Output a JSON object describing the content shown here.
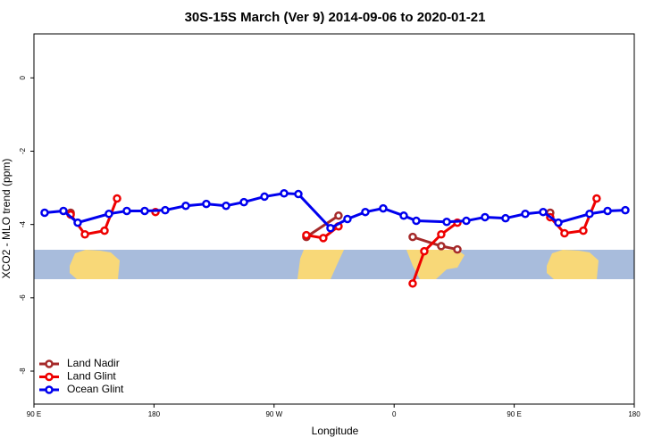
{
  "chart_data": {
    "type": "line",
    "title": "30S-15S March (Ver 9)   2014-09-06 to 2020-01-21",
    "xlabel": "Longitude",
    "ylabel": "XCO2 - MLO trend (ppm)",
    "xlim": [
      90,
      540
    ],
    "xticks": [
      {
        "value": 90,
        "label": "90 E"
      },
      180,
      {
        "value": 270,
        "label": "90 W"
      },
      {
        "value": 360,
        "label": "0"
      },
      {
        "value": 450,
        "label": "90 E"
      },
      {
        "value": 540,
        "label": "180"
      }
    ],
    "ylim": [
      -8.9,
      1.2
    ],
    "yticks": [
      0,
      -2,
      -4,
      -6,
      -8
    ],
    "legend": "bottom-left",
    "series": [
      {
        "name": "Land Nadir",
        "color": "#a52a2a",
        "x": [
          117.5,
          null,
          294.2,
          318.3,
          null,
          373.9,
          395.3,
          407.4,
          null,
          477.0
        ],
        "values": [
          -3.68,
          null,
          -4.34,
          -3.76,
          null,
          -4.34,
          -4.59,
          -4.68,
          null,
          -3.68
        ]
      },
      {
        "name": "Land Glint",
        "color": "#ee0000",
        "x": [
          117.5,
          128.2,
          142.9,
          152.3,
          null,
          181.1,
          null,
          294.2,
          306.9,
          318.3,
          null,
          373.9,
          382.6,
          395.3,
          407.4,
          null,
          477.0,
          487.7,
          501.8,
          511.8
        ],
        "values": [
          -3.73,
          -4.27,
          -4.17,
          -3.29,
          null,
          -3.66,
          null,
          -4.29,
          -4.37,
          -4.05,
          null,
          -5.61,
          -4.73,
          -4.27,
          -3.95,
          null,
          -3.8,
          -4.24,
          -4.17,
          -3.29
        ]
      },
      {
        "name": "Ocean Glint",
        "color": "#0000ee",
        "x": [
          98.0,
          112.1,
          122.8,
          146.2,
          159.6,
          173.0,
          188.4,
          203.8,
          219.2,
          234.0,
          247.4,
          262.8,
          277.5,
          288.2,
          312.3,
          325.0,
          338.4,
          351.8,
          367.2,
          376.6,
          399.4,
          414.1,
          428.1,
          443.5,
          458.3,
          471.7,
          483.1,
          506.5,
          520.0,
          533.3
        ],
        "values": [
          -3.68,
          -3.63,
          -3.95,
          -3.71,
          -3.63,
          -3.63,
          -3.61,
          -3.49,
          -3.44,
          -3.49,
          -3.39,
          -3.24,
          -3.15,
          -3.17,
          -4.1,
          -3.85,
          -3.66,
          -3.56,
          -3.76,
          -3.9,
          -3.93,
          -3.9,
          -3.8,
          -3.83,
          -3.71,
          -3.66,
          -3.95,
          -3.71,
          -3.63,
          -3.61
        ]
      }
    ]
  }
}
